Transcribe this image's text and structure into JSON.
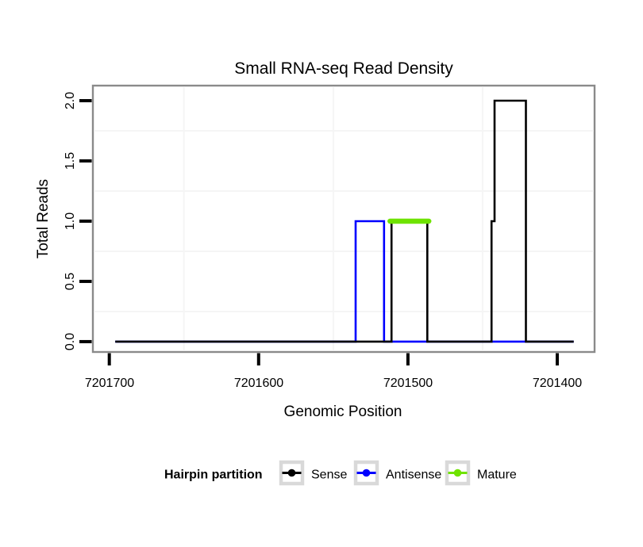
{
  "chart_data": {
    "type": "line",
    "subtype": "step-read-density",
    "title": "Small RNA-seq Read Density",
    "xlabel": "Genomic Position",
    "ylabel": "Total Reads",
    "x_reversed": true,
    "xlim": [
      7201711,
      7201375
    ],
    "ylim": [
      -0.086,
      2.125
    ],
    "x_ticks": {
      "values": [
        7201700,
        7201600,
        7201500,
        7201400
      ],
      "labels": [
        "7201700",
        "7201600",
        "7201500",
        "7201400"
      ]
    },
    "y_ticks": {
      "values": [
        0,
        0.5,
        1.0,
        1.5,
        2.0
      ],
      "labels": [
        "0.0",
        "0.5",
        "1.0",
        "1.5",
        "2.0"
      ]
    },
    "x_minor_gridlines": [
      7201650,
      7201550,
      7201450
    ],
    "y_minor_gridlines": [
      0.25,
      0.75,
      1.25,
      1.75
    ],
    "grid_color": "#f5f5f5",
    "panel_border_color": "#8a8a8a",
    "tick_color": "#000000",
    "series": [
      {
        "name": "Antisense",
        "color": "#0000ff",
        "linewidth": 2.6,
        "linecap": "butt",
        "points": [
          [
            7201696,
            0
          ],
          [
            7201535,
            0
          ],
          [
            7201535,
            1
          ],
          [
            7201516,
            1
          ],
          [
            7201516,
            0
          ],
          [
            7201389,
            0
          ]
        ]
      },
      {
        "name": "Sense",
        "color": "#000000",
        "linewidth": 2.6,
        "linecap": "butt",
        "points": [
          [
            7201696,
            0
          ],
          [
            7201511,
            0
          ],
          [
            7201511,
            1
          ],
          [
            7201487,
            1
          ],
          [
            7201487,
            0
          ],
          [
            7201444,
            0
          ],
          [
            7201444,
            1
          ],
          [
            7201442,
            1
          ],
          [
            7201442,
            2
          ],
          [
            7201423,
            2
          ],
          [
            7201421,
            2
          ],
          [
            7201421,
            0
          ],
          [
            7201389,
            0
          ]
        ]
      },
      {
        "name": "Mature",
        "color": "#6fe300",
        "linewidth": 6.5,
        "linecap": "round",
        "points": [
          [
            7201512,
            1
          ],
          [
            7201486,
            1
          ]
        ]
      }
    ],
    "legend": {
      "title": "Hairpin partition",
      "position": "bottom",
      "key_border_color": "#d9d9d9",
      "items": [
        {
          "label": "Sense",
          "color": "#000000"
        },
        {
          "label": "Antisense",
          "color": "#0000ff"
        },
        {
          "label": "Mature",
          "color": "#6fe300"
        }
      ]
    }
  }
}
